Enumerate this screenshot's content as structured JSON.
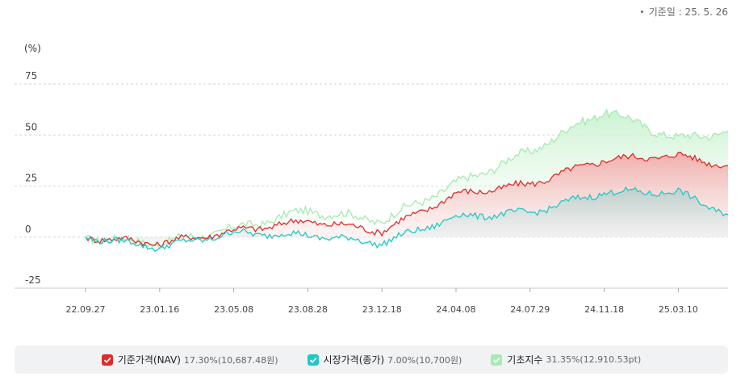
{
  "header": {
    "basis_date": "기준일 : 25. 5. 26"
  },
  "legend": [
    {
      "name": "기준가격(NAV)",
      "value": "17.30%(10,687.48원)",
      "color": "#e02b2b",
      "icon": "check-icon"
    },
    {
      "name": "시장가격(종가)",
      "value": "7.00%(10,700원)",
      "color": "#1fc9c6",
      "icon": "check-icon"
    },
    {
      "name": "기초지수",
      "value": "31.35%(12,910.53pt)",
      "color": "#a6eab1",
      "icon": "check-icon"
    }
  ],
  "chart_data": {
    "type": "line",
    "ylabel": "(%)",
    "ylim": [
      -25,
      75
    ],
    "yticks": [
      "75",
      "50",
      "25",
      "0",
      "-25"
    ],
    "grid": true,
    "categories": [
      "22.09.27",
      "23.01.16",
      "23.05.08",
      "23.08.28",
      "23.12.18",
      "24.04.08",
      "24.07.29",
      "24.11.18",
      "25.03.10"
    ],
    "series": [
      {
        "name": "기초지수",
        "color": "#a6eab1",
        "values": [
          0,
          -3,
          4,
          13,
          8,
          26,
          42,
          62,
          48
        ]
      },
      {
        "name": "기준가격(NAV)",
        "color": "#e02b2b",
        "values": [
          0,
          -3,
          3,
          8,
          3,
          21,
          26,
          38,
          40
        ]
      },
      {
        "name": "시장가격(종가)",
        "color": "#1fc9c6",
        "values": [
          0,
          -5,
          2,
          1,
          -3,
          10,
          12,
          22,
          22
        ]
      }
    ],
    "final_values": [
      52,
      35,
      11
    ]
  }
}
